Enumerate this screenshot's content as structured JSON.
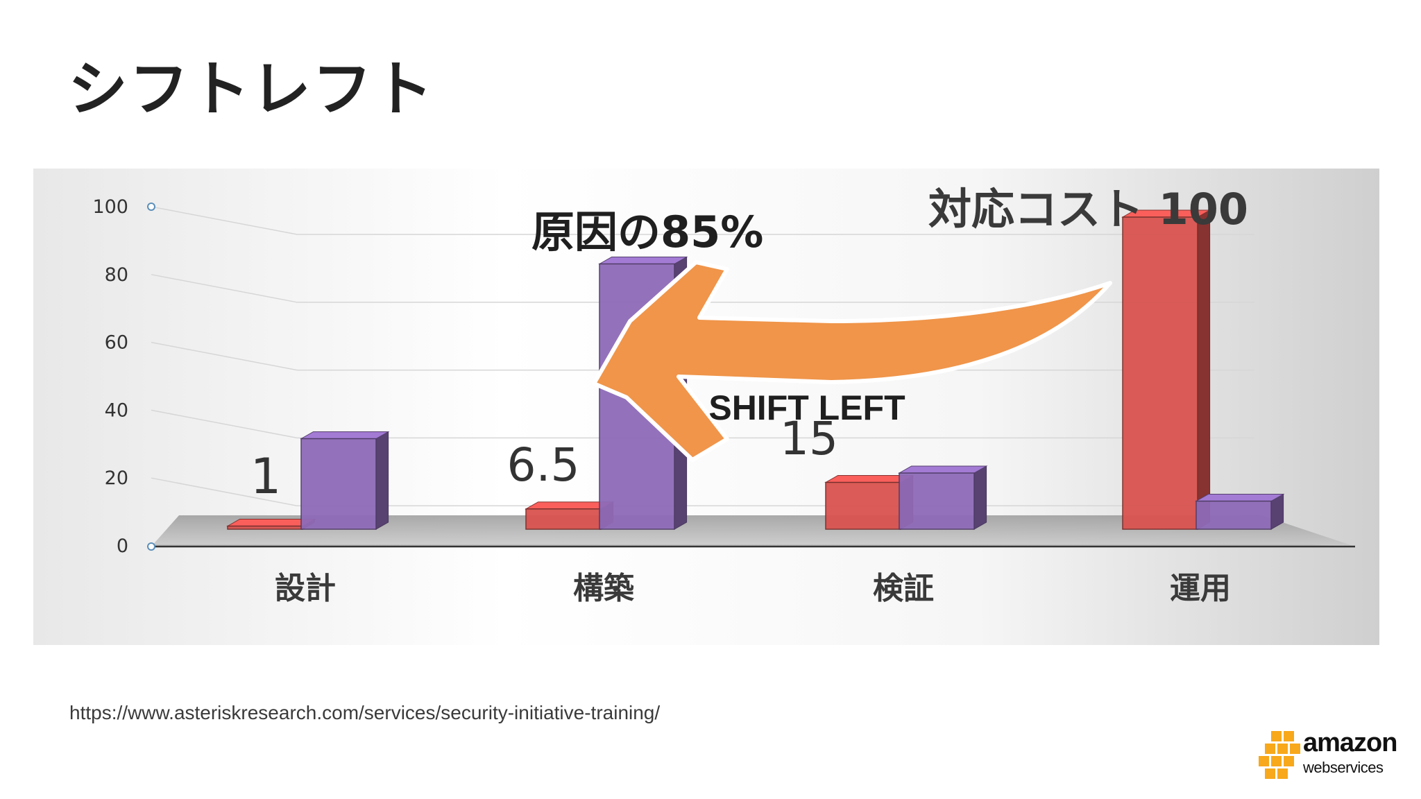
{
  "slide": {
    "title": "シフトレフト",
    "source_url": "https://www.asteriskresearch.com/services/security-initiative-training/"
  },
  "chart_data": {
    "type": "bar",
    "categories": [
      "設計",
      "構築",
      "検証",
      "運用"
    ],
    "ylim": [
      0,
      100
    ],
    "yticks": [
      "0",
      "20",
      "40",
      "60",
      "80",
      "100"
    ],
    "series": [
      {
        "color": "#d9534f",
        "values": [
          1,
          6.5,
          15,
          100
        ]
      },
      {
        "color": "#8e6bb8",
        "values": [
          29,
          85,
          18,
          9
        ]
      }
    ],
    "data_labels": [
      "1",
      "6.5",
      "15"
    ],
    "annotations": {
      "cause": "原因の85%",
      "cost": "対応コスト 100",
      "arrow": "SHIFT LEFT"
    },
    "arrow_color": "#f0954a",
    "grid": true,
    "legend": "none"
  },
  "logo": {
    "word1": "amazon",
    "word2": "webservices",
    "color": "#f7a81b"
  }
}
